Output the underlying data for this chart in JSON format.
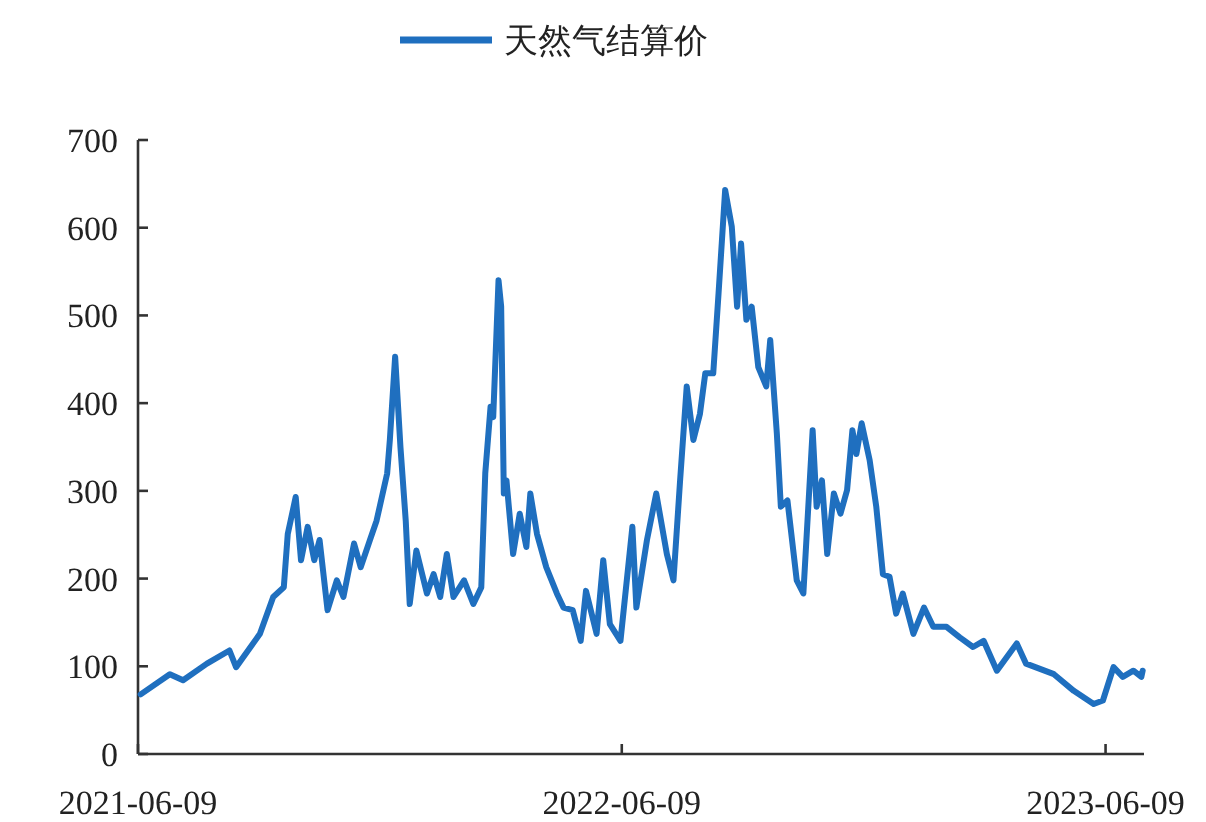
{
  "chart_data": {
    "type": "line",
    "legend": "top",
    "grid": false,
    "xlim": [
      "2021-06-09",
      "2023-07-08"
    ],
    "xticks": [
      "2021-06-09",
      "2022-06-09",
      "2023-06-09"
    ],
    "ylim": [
      0,
      700
    ],
    "yticks": [
      0,
      100,
      200,
      300,
      400,
      500,
      600,
      700
    ],
    "x": [
      "2021-06-11",
      "2021-07-03",
      "2021-07-13",
      "2021-07-31",
      "2021-08-17",
      "2021-08-22",
      "2021-09-09",
      "2021-09-19",
      "2021-09-27",
      "2021-09-30",
      "2021-10-06",
      "2021-10-10",
      "2021-10-15",
      "2021-10-20",
      "2021-10-24",
      "2021-10-30",
      "2021-11-06",
      "2021-11-11",
      "2021-11-19",
      "2021-11-24",
      "2021-12-01",
      "2021-12-06",
      "2021-12-14",
      "2021-12-16",
      "2021-12-20",
      "2021-12-24",
      "2021-12-28",
      "2021-12-31",
      "2022-01-05",
      "2022-01-13",
      "2022-01-18",
      "2022-01-23",
      "2022-01-28",
      "2022-02-02",
      "2022-02-10",
      "2022-02-17",
      "2022-02-23",
      "2022-02-26",
      "2022-03-02",
      "2022-03-04",
      "2022-03-08",
      "2022-03-10",
      "2022-03-12",
      "2022-03-14",
      "2022-03-19",
      "2022-03-24",
      "2022-03-29",
      "2022-04-01",
      "2022-04-06",
      "2022-04-13",
      "2022-04-21",
      "2022-04-26",
      "2022-05-03",
      "2022-05-09",
      "2022-05-13",
      "2022-05-21",
      "2022-05-26",
      "2022-05-31",
      "2022-06-08",
      "2022-06-17",
      "2022-06-20",
      "2022-06-28",
      "2022-07-05",
      "2022-07-13",
      "2022-07-18",
      "2022-07-23",
      "2022-07-28",
      "2022-08-02",
      "2022-08-07",
      "2022-08-11",
      "2022-08-17",
      "2022-08-21",
      "2022-08-26",
      "2022-08-31",
      "2022-09-04",
      "2022-09-07",
      "2022-09-11",
      "2022-09-15",
      "2022-09-20",
      "2022-09-26",
      "2022-09-29",
      "2022-10-04",
      "2022-10-07",
      "2022-10-12",
      "2022-10-19",
      "2022-10-24",
      "2022-10-31",
      "2022-11-03",
      "2022-11-07",
      "2022-11-11",
      "2022-11-16",
      "2022-11-21",
      "2022-11-26",
      "2022-11-30",
      "2022-12-03",
      "2022-12-07",
      "2022-12-13",
      "2022-12-18",
      "2022-12-23",
      "2022-12-28",
      "2023-01-02",
      "2023-01-07",
      "2023-01-15",
      "2023-01-23",
      "2023-01-30",
      "2023-02-09",
      "2023-02-19",
      "2023-03-01",
      "2023-03-09",
      "2023-03-19",
      "2023-04-03",
      "2023-04-10",
      "2023-05-01",
      "2023-05-16",
      "2023-05-31",
      "2023-06-07",
      "2023-06-15",
      "2023-06-22",
      "2023-06-30",
      "2023-07-06",
      "2023-07-07"
    ],
    "series": [
      {
        "name": "天然气结算价",
        "color": "#1f6fbf",
        "values": [
          68,
          91,
          84,
          103,
          118,
          99,
          137,
          179,
          190,
          251,
          293,
          221,
          259,
          221,
          244,
          164,
          198,
          179,
          240,
          213,
          244,
          266,
          320,
          358,
          453,
          350,
          266,
          171,
          232,
          183,
          205,
          179,
          228,
          179,
          198,
          171,
          190,
          320,
          396,
          384,
          540,
          510,
          297,
          312,
          228,
          274,
          236,
          297,
          251,
          213,
          183,
          167,
          164,
          129,
          186,
          137,
          221,
          148,
          129,
          259,
          167,
          244,
          297,
          228,
          198,
          312,
          419,
          358,
          388,
          434,
          434,
          525,
          643,
          601,
          510,
          582,
          495,
          510,
          441,
          419,
          472,
          365,
          282,
          289,
          198,
          183,
          369,
          282,
          312,
          228,
          297,
          274,
          301,
          369,
          342,
          377,
          335,
          282,
          205,
          202,
          160,
          183,
          137,
          167,
          145,
          145,
          133,
          122,
          129,
          95,
          126,
          103,
          91,
          72,
          57,
          61,
          99,
          88,
          95,
          88,
          95
        ]
      }
    ]
  }
}
